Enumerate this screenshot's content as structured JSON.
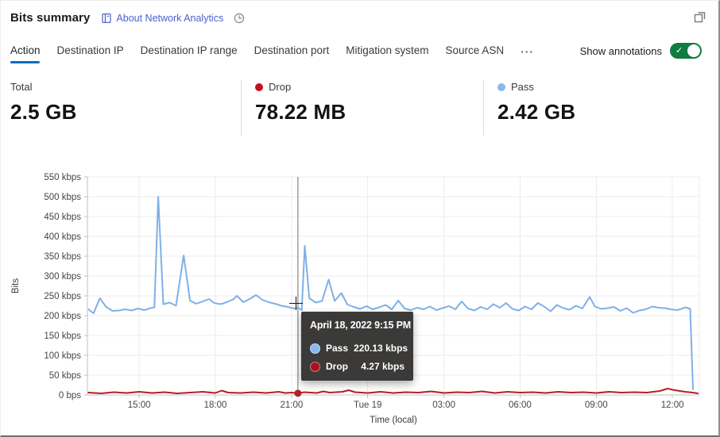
{
  "header": {
    "title": "Bits summary",
    "about_link": "About Network Analytics"
  },
  "icons": {
    "about": "book-icon",
    "time_range": "clock-icon",
    "popout": "restore-icon",
    "more": "···",
    "toggle_check": "✓"
  },
  "tabs": {
    "items": [
      {
        "label": "Action",
        "active": true
      },
      {
        "label": "Destination IP",
        "active": false
      },
      {
        "label": "Destination IP range",
        "active": false
      },
      {
        "label": "Destination port",
        "active": false
      },
      {
        "label": "Mitigation system",
        "active": false
      },
      {
        "label": "Source ASN",
        "active": false
      }
    ]
  },
  "annotations": {
    "label": "Show annotations",
    "enabled": true,
    "toggle_color": "#107c41"
  },
  "cards": [
    {
      "label": "Total",
      "value": "2.5 GB",
      "dot_color": null
    },
    {
      "label": "Drop",
      "value": "78.22 MB",
      "dot_color": "#c50f1f"
    },
    {
      "label": "Pass",
      "value": "2.42 GB",
      "dot_color": "#8ab8ec"
    }
  ],
  "tooltip": {
    "title": "April 18, 2022 9:15 PM",
    "rows": [
      {
        "label": "Pass",
        "value": "220.13 kbps",
        "color": "#8ab8ec"
      },
      {
        "label": "Drop",
        "value": "4.27 kbps",
        "color": "#a31621"
      }
    ]
  },
  "chart_data": {
    "type": "line",
    "title": "Bits summary over time",
    "xlabel": "Time (local)",
    "ylabel": "Bits",
    "unit": "kbps",
    "x_unit": "hours since Apr 18 00:00 local",
    "x_range": [
      12.96,
      37.06
    ],
    "ylim": [
      0,
      550
    ],
    "grid": true,
    "legend_position": "cards-above",
    "y_ticks": [
      {
        "v": 550,
        "label": "550 kbps"
      },
      {
        "v": 500,
        "label": "500 kbps"
      },
      {
        "v": 450,
        "label": "450 kbps"
      },
      {
        "v": 400,
        "label": "400 kbps"
      },
      {
        "v": 350,
        "label": "350 kbps"
      },
      {
        "v": 300,
        "label": "300 kbps"
      },
      {
        "v": 250,
        "label": "250 kbps"
      },
      {
        "v": 200,
        "label": "200 kbps"
      },
      {
        "v": 150,
        "label": "150 kbps"
      },
      {
        "v": 100,
        "label": "100 kbps"
      },
      {
        "v": 50,
        "label": "50 kbps"
      },
      {
        "v": 0,
        "label": "0 bps"
      }
    ],
    "x_ticks": [
      {
        "v": 15,
        "label": "15:00"
      },
      {
        "v": 18,
        "label": "18:00"
      },
      {
        "v": 21,
        "label": "21:00"
      },
      {
        "v": 24,
        "label": "Tue 19"
      },
      {
        "v": 27,
        "label": "03:00"
      },
      {
        "v": 30,
        "label": "06:00"
      },
      {
        "v": 33,
        "label": "09:00"
      },
      {
        "v": 36,
        "label": "12:00"
      }
    ],
    "series": [
      {
        "name": "Pass",
        "color": "#7fb0e8",
        "points": [
          [
            13.0,
            216
          ],
          [
            13.2,
            206
          ],
          [
            13.45,
            244
          ],
          [
            13.7,
            222
          ],
          [
            13.95,
            212
          ],
          [
            14.2,
            213
          ],
          [
            14.45,
            216
          ],
          [
            14.7,
            213
          ],
          [
            14.95,
            218
          ],
          [
            15.2,
            214
          ],
          [
            15.45,
            219
          ],
          [
            15.6,
            221
          ],
          [
            15.75,
            500
          ],
          [
            15.95,
            229
          ],
          [
            16.2,
            233
          ],
          [
            16.45,
            225
          ],
          [
            16.75,
            352
          ],
          [
            17.0,
            238
          ],
          [
            17.25,
            230
          ],
          [
            17.5,
            236
          ],
          [
            17.75,
            242
          ],
          [
            17.95,
            232
          ],
          [
            18.2,
            229
          ],
          [
            18.45,
            234
          ],
          [
            18.7,
            241
          ],
          [
            18.85,
            250
          ],
          [
            19.1,
            234
          ],
          [
            19.35,
            242
          ],
          [
            19.6,
            252
          ],
          [
            19.85,
            240
          ],
          [
            20.1,
            234
          ],
          [
            20.35,
            230
          ],
          [
            20.6,
            225
          ],
          [
            20.85,
            222
          ],
          [
            21.1,
            218
          ],
          [
            21.25,
            220.13
          ],
          [
            21.4,
            214
          ],
          [
            21.52,
            376
          ],
          [
            21.7,
            244
          ],
          [
            21.95,
            233
          ],
          [
            22.2,
            237
          ],
          [
            22.46,
            291
          ],
          [
            22.7,
            237
          ],
          [
            22.96,
            257
          ],
          [
            23.2,
            228
          ],
          [
            23.45,
            222
          ],
          [
            23.7,
            217
          ],
          [
            23.95,
            224
          ],
          [
            24.2,
            216
          ],
          [
            24.45,
            221
          ],
          [
            24.7,
            227
          ],
          [
            24.95,
            216
          ],
          [
            25.2,
            238
          ],
          [
            25.45,
            218
          ],
          [
            25.7,
            214
          ],
          [
            25.95,
            220
          ],
          [
            26.2,
            216
          ],
          [
            26.45,
            223
          ],
          [
            26.7,
            214
          ],
          [
            26.95,
            219
          ],
          [
            27.2,
            224
          ],
          [
            27.45,
            216
          ],
          [
            27.7,
            236
          ],
          [
            27.95,
            218
          ],
          [
            28.2,
            213
          ],
          [
            28.45,
            222
          ],
          [
            28.7,
            216
          ],
          [
            28.95,
            229
          ],
          [
            29.2,
            220
          ],
          [
            29.45,
            232
          ],
          [
            29.7,
            217
          ],
          [
            29.95,
            213
          ],
          [
            30.2,
            223
          ],
          [
            30.45,
            216
          ],
          [
            30.7,
            232
          ],
          [
            30.95,
            223
          ],
          [
            31.2,
            211
          ],
          [
            31.45,
            227
          ],
          [
            31.7,
            219
          ],
          [
            31.95,
            215
          ],
          [
            32.2,
            225
          ],
          [
            32.45,
            218
          ],
          [
            32.74,
            247
          ],
          [
            32.95,
            223
          ],
          [
            33.2,
            217
          ],
          [
            33.45,
            219
          ],
          [
            33.7,
            222
          ],
          [
            33.95,
            212
          ],
          [
            34.2,
            219
          ],
          [
            34.45,
            207
          ],
          [
            34.7,
            213
          ],
          [
            34.95,
            216
          ],
          [
            35.2,
            223
          ],
          [
            35.45,
            220
          ],
          [
            35.7,
            219
          ],
          [
            35.95,
            216
          ],
          [
            36.2,
            214
          ],
          [
            36.53,
            221
          ],
          [
            36.7,
            217
          ],
          [
            36.81,
            14
          ]
        ]
      },
      {
        "name": "Drop",
        "color": "#b41f24",
        "points": [
          [
            13.0,
            6
          ],
          [
            13.5,
            4
          ],
          [
            14.0,
            7
          ],
          [
            14.5,
            5
          ],
          [
            15.0,
            8
          ],
          [
            15.5,
            5
          ],
          [
            16.0,
            7
          ],
          [
            16.5,
            4
          ],
          [
            17.0,
            6
          ],
          [
            17.5,
            8
          ],
          [
            18.0,
            5
          ],
          [
            18.25,
            11
          ],
          [
            18.5,
            6
          ],
          [
            19.0,
            5
          ],
          [
            19.5,
            7
          ],
          [
            20.0,
            5
          ],
          [
            20.5,
            8
          ],
          [
            20.75,
            5
          ],
          [
            21.0,
            6
          ],
          [
            21.25,
            4.27
          ],
          [
            21.5,
            7
          ],
          [
            22.0,
            5
          ],
          [
            22.25,
            9
          ],
          [
            22.5,
            6
          ],
          [
            23.0,
            8
          ],
          [
            23.25,
            12
          ],
          [
            23.5,
            7
          ],
          [
            24.0,
            5
          ],
          [
            24.5,
            8
          ],
          [
            25.0,
            5
          ],
          [
            25.5,
            7
          ],
          [
            26.0,
            6
          ],
          [
            26.5,
            9
          ],
          [
            27.0,
            5
          ],
          [
            27.5,
            7
          ],
          [
            28.0,
            6
          ],
          [
            28.5,
            9
          ],
          [
            29.0,
            5
          ],
          [
            29.5,
            8
          ],
          [
            30.0,
            6
          ],
          [
            30.5,
            7
          ],
          [
            31.0,
            5
          ],
          [
            31.5,
            8
          ],
          [
            32.0,
            6
          ],
          [
            32.5,
            7
          ],
          [
            33.0,
            5
          ],
          [
            33.5,
            8
          ],
          [
            34.0,
            6
          ],
          [
            34.5,
            7
          ],
          [
            35.0,
            6
          ],
          [
            35.5,
            10
          ],
          [
            35.81,
            16
          ],
          [
            36.1,
            12
          ],
          [
            36.5,
            8
          ],
          [
            36.8,
            6
          ],
          [
            37.0,
            4
          ]
        ]
      }
    ],
    "highlight": {
      "x": 21.25,
      "pass_value": 220.13,
      "drop_value": 4.27,
      "crosshair_color": "#8f8f8f"
    }
  }
}
